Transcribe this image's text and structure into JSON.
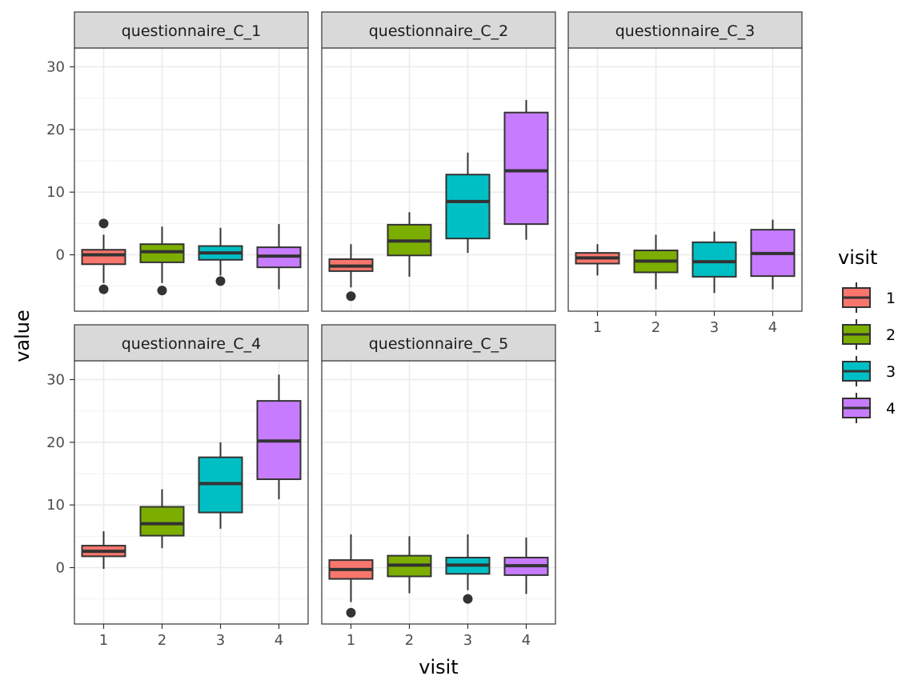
{
  "chart_data": {
    "type": "boxplot",
    "xlabel": "visit",
    "ylabel": "value",
    "ylim": [
      -9,
      33
    ],
    "yticks": [
      0,
      10,
      20,
      30
    ],
    "categories": [
      "1",
      "2",
      "3",
      "4"
    ],
    "grid": true,
    "legend": {
      "title": "visit",
      "placement": "right",
      "entries": [
        "1",
        "2",
        "3",
        "4"
      ]
    },
    "colors": {
      "1": "#F8766D",
      "2": "#7CAE00",
      "3": "#00BFC4",
      "4": "#C77CFF"
    },
    "facets": [
      {
        "title": "questionnaire_C_1",
        "boxes": [
          {
            "visit": "1",
            "lower_whisker": -4.5,
            "q1": -1.5,
            "median": 0.0,
            "q3": 0.8,
            "upper_whisker": 3.2,
            "outliers": [
              5.0,
              -5.5
            ]
          },
          {
            "visit": "2",
            "lower_whisker": -4.5,
            "q1": -1.2,
            "median": 0.5,
            "q3": 1.7,
            "upper_whisker": 4.5,
            "outliers": [
              -5.7
            ]
          },
          {
            "visit": "3",
            "lower_whisker": -3.3,
            "q1": -0.8,
            "median": 0.3,
            "q3": 1.4,
            "upper_whisker": 4.3,
            "outliers": [
              -4.2
            ]
          },
          {
            "visit": "4",
            "lower_whisker": -5.5,
            "q1": -2.0,
            "median": -0.2,
            "q3": 1.2,
            "upper_whisker": 4.9,
            "outliers": []
          }
        ]
      },
      {
        "title": "questionnaire_C_2",
        "boxes": [
          {
            "visit": "1",
            "lower_whisker": -5.2,
            "q1": -2.6,
            "median": -1.8,
            "q3": -0.7,
            "upper_whisker": 1.7,
            "outliers": [
              -6.6
            ]
          },
          {
            "visit": "2",
            "lower_whisker": -3.5,
            "q1": -0.1,
            "median": 2.2,
            "q3": 4.8,
            "upper_whisker": 6.8,
            "outliers": []
          },
          {
            "visit": "3",
            "lower_whisker": 0.3,
            "q1": 2.6,
            "median": 8.5,
            "q3": 12.8,
            "upper_whisker": 16.3,
            "outliers": []
          },
          {
            "visit": "4",
            "lower_whisker": 2.4,
            "q1": 4.9,
            "median": 13.4,
            "q3": 22.7,
            "upper_whisker": 24.7,
            "outliers": []
          }
        ]
      },
      {
        "title": "questionnaire_C_3",
        "boxes": [
          {
            "visit": "1",
            "lower_whisker": -3.3,
            "q1": -1.4,
            "median": -0.5,
            "q3": 0.3,
            "upper_whisker": 1.7,
            "outliers": []
          },
          {
            "visit": "2",
            "lower_whisker": -5.5,
            "q1": -2.8,
            "median": -1.0,
            "q3": 0.7,
            "upper_whisker": 3.2,
            "outliers": []
          },
          {
            "visit": "3",
            "lower_whisker": -6.1,
            "q1": -3.5,
            "median": -1.1,
            "q3": 2.0,
            "upper_whisker": 3.7,
            "outliers": []
          },
          {
            "visit": "4",
            "lower_whisker": -5.5,
            "q1": -3.4,
            "median": 0.2,
            "q3": 4.0,
            "upper_whisker": 5.6,
            "outliers": []
          }
        ]
      },
      {
        "title": "questionnaire_C_4",
        "boxes": [
          {
            "visit": "1",
            "lower_whisker": -0.2,
            "q1": 1.8,
            "median": 2.6,
            "q3": 3.5,
            "upper_whisker": 5.8,
            "outliers": []
          },
          {
            "visit": "2",
            "lower_whisker": 3.1,
            "q1": 5.1,
            "median": 7.0,
            "q3": 9.7,
            "upper_whisker": 12.5,
            "outliers": []
          },
          {
            "visit": "3",
            "lower_whisker": 6.2,
            "q1": 8.8,
            "median": 13.4,
            "q3": 17.6,
            "upper_whisker": 20.0,
            "outliers": []
          },
          {
            "visit": "4",
            "lower_whisker": 10.9,
            "q1": 14.1,
            "median": 20.2,
            "q3": 26.6,
            "upper_whisker": 30.8,
            "outliers": []
          }
        ]
      },
      {
        "title": "questionnaire_C_5",
        "boxes": [
          {
            "visit": "1",
            "lower_whisker": -5.5,
            "q1": -1.8,
            "median": -0.3,
            "q3": 1.2,
            "upper_whisker": 5.3,
            "outliers": [
              -7.2
            ]
          },
          {
            "visit": "2",
            "lower_whisker": -4.1,
            "q1": -1.4,
            "median": 0.4,
            "q3": 1.9,
            "upper_whisker": 5.0,
            "outliers": []
          },
          {
            "visit": "3",
            "lower_whisker": -3.6,
            "q1": -1.0,
            "median": 0.4,
            "q3": 1.6,
            "upper_whisker": 5.3,
            "outliers": [
              -5.0
            ]
          },
          {
            "visit": "4",
            "lower_whisker": -4.2,
            "q1": -1.2,
            "median": 0.3,
            "q3": 1.6,
            "upper_whisker": 4.8,
            "outliers": []
          }
        ]
      }
    ]
  }
}
